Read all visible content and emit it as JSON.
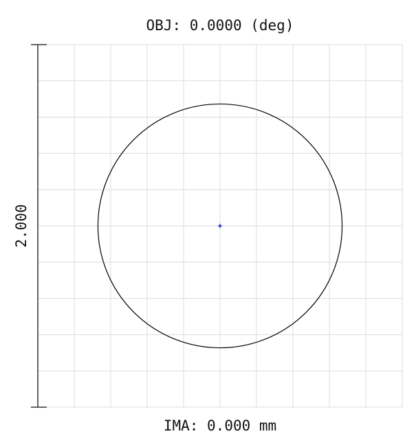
{
  "chart_data": {
    "type": "spot",
    "title": "OBJ: 0.0000 (deg)",
    "x_label": "IMA: 0.000 mm",
    "scale_bar": {
      "value": 2,
      "label": "2.000"
    },
    "xlim": [
      -1,
      1
    ],
    "ylim": [
      -1,
      1
    ],
    "xticks": [
      -1,
      -0.8,
      -0.6,
      -0.4,
      -0.2,
      0,
      0.2,
      0.4,
      0.6,
      0.8,
      1
    ],
    "yticks": [
      -1,
      -0.8,
      -0.6,
      -0.4,
      -0.2,
      0,
      0.2,
      0.4,
      0.6,
      0.8,
      1
    ],
    "grid": true,
    "airy_radius": 0.67,
    "airy_color": "#000000",
    "series": [
      {
        "color": "#0000cc",
        "x": [
          0
        ],
        "y": [
          0
        ]
      }
    ]
  }
}
